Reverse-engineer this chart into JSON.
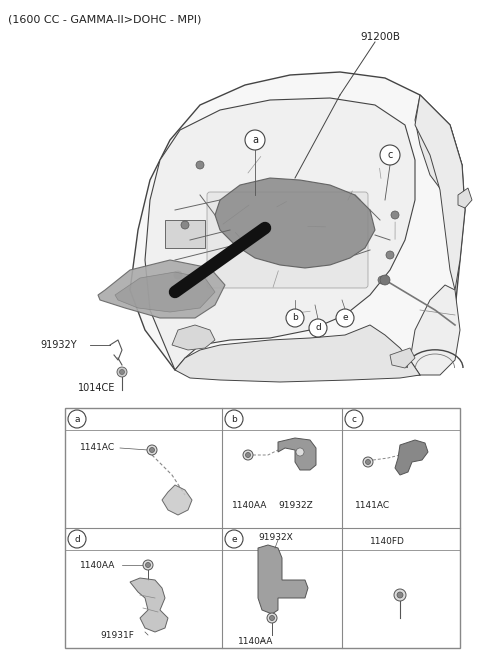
{
  "title": "(1600 CC - GAMMA-II>DOHC - MPI)",
  "bg": "#ffffff",
  "title_fs": 8,
  "label_91200B": "91200B",
  "label_91932Y": "91932Y",
  "label_1014CE": "1014CE",
  "grid_label_color": "#333333",
  "line_color": "#555555",
  "dark_color": "#222222",
  "cell_headers": [
    "a",
    "b",
    "c",
    "d",
    "e",
    ""
  ],
  "cell_parts_top": [
    [
      "1141AC"
    ],
    [
      "1140AA",
      "91932Z"
    ],
    [
      "1141AC"
    ]
  ],
  "cell_parts_bot": [
    [
      "1140AA",
      "91931F"
    ],
    [
      "91932X",
      "1140AA"
    ],
    [
      "1140FD"
    ]
  ]
}
